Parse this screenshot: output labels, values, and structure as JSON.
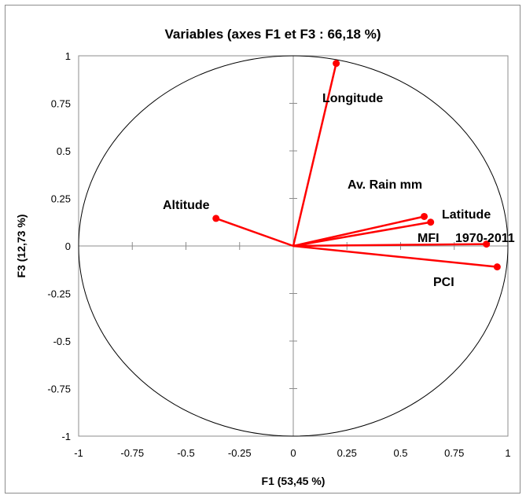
{
  "chart_data": {
    "type": "scatter",
    "subtype": "pca-correlation-circle",
    "title": "Variables (axes F1 et F3 : 66,18 %)",
    "xlabel": "F1 (53,45 %)",
    "ylabel": "F3 (12,73 %)",
    "xlim": [
      -1,
      1
    ],
    "ylim": [
      -1,
      1
    ],
    "x_ticks": [
      "-1",
      "-0.75",
      "-0.5",
      "-0.25",
      "0",
      "0.25",
      "0.5",
      "0.75",
      "1"
    ],
    "y_ticks": [
      "1",
      "0.75",
      "0.5",
      "0.25",
      "0",
      "-0.25",
      "-0.5",
      "-0.75",
      "-1"
    ],
    "line_color": "#ff0000",
    "variables": [
      {
        "name": "Longitude",
        "x": 0.2,
        "y": 0.96
      },
      {
        "name": "Av. Rain mm",
        "x": 0.61,
        "y": 0.155
      },
      {
        "name": "Latitude",
        "x": 0.64,
        "y": 0.125
      },
      {
        "name": "MFI 1970-2011",
        "x": 0.9,
        "y": 0.01
      },
      {
        "name": "PCI",
        "x": 0.95,
        "y": -0.11
      },
      {
        "name": "Altitude",
        "x": -0.36,
        "y": 0.145
      }
    ],
    "labels": [
      {
        "text": "Longitude",
        "for": "Longitude"
      },
      {
        "text": "Av. Rain mm",
        "for": "Av. Rain mm"
      },
      {
        "text": "Latitude",
        "for": "Latitude"
      },
      {
        "text": "MFI",
        "for": "MFI 1970-2011",
        "style": "large"
      },
      {
        "text": "1970-2011",
        "for": "MFI 1970-2011",
        "style": "small"
      },
      {
        "text": "PCI",
        "for": "PCI"
      },
      {
        "text": "Altitude",
        "for": "Altitude"
      }
    ]
  }
}
